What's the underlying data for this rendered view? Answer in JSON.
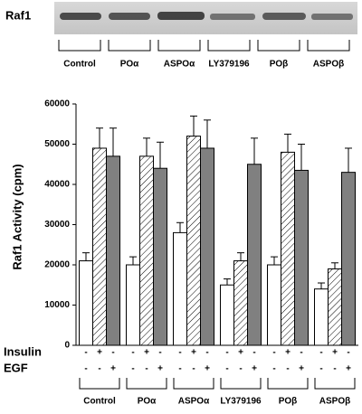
{
  "chart_data": {
    "type": "bar",
    "ylabel": "Raf1  Activity (cpm)",
    "blot_label": "Raf1",
    "categories": [
      "Control",
      "POα",
      "ASPOα",
      "LY379196",
      "POβ",
      "ASPOβ"
    ],
    "series": [
      {
        "color": "#ffffff",
        "pattern": "none",
        "values": [
          21000,
          20000,
          28000,
          15000,
          20000,
          14000
        ],
        "errors": [
          2000,
          2000,
          2500,
          1500,
          2000,
          1500
        ]
      },
      {
        "color": "#ffffff",
        "pattern": "hatch",
        "values": [
          49000,
          47000,
          52000,
          21000,
          48000,
          19000
        ],
        "errors": [
          5000,
          4500,
          5000,
          2000,
          4500,
          1500
        ]
      },
      {
        "color": "#808080",
        "pattern": "none",
        "values": [
          47000,
          44000,
          49000,
          45000,
          43500,
          43000
        ],
        "errors": [
          7000,
          6500,
          7000,
          6500,
          6500,
          6000
        ]
      }
    ],
    "treatments": [
      {
        "label": "Insulin",
        "signs": [
          "-",
          "+",
          "-"
        ]
      },
      {
        "label": "EGF",
        "signs": [
          "-",
          "-",
          "+"
        ]
      }
    ],
    "ylim": [
      0,
      60000
    ],
    "yticks": [
      0,
      10000,
      20000,
      30000,
      40000,
      50000,
      60000
    ],
    "grid": false
  }
}
